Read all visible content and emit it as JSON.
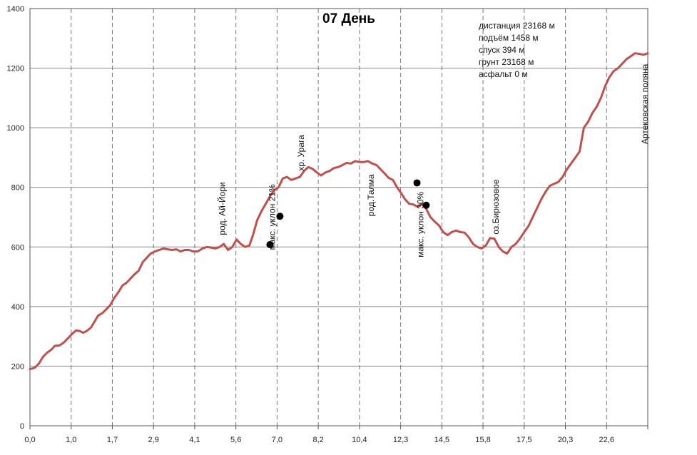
{
  "chart_data": {
    "type": "line",
    "title": "07 День",
    "xlabel": "",
    "ylabel": "",
    "ylim": [
      0,
      1400
    ],
    "yticks": [
      0,
      200,
      400,
      600,
      800,
      1000,
      1200,
      1400
    ],
    "xticks": [
      "0,0",
      "1,0",
      "1,7",
      "2,9",
      "4,1",
      "5,6",
      "7,0",
      "8,2",
      "10,4",
      "12,3",
      "14,5",
      "15,8",
      "17,5",
      "20,3",
      "22,6"
    ],
    "grid": "vertical dashed + horizontal solid",
    "line_color": "#c0504d",
    "series": [
      {
        "name": "",
        "points": [
          [
            0.0,
            190
          ],
          [
            0.7,
            195
          ],
          [
            1.3,
            210
          ],
          [
            1.8,
            230
          ],
          [
            2.4,
            245
          ],
          [
            3.0,
            255
          ],
          [
            3.5,
            268
          ],
          [
            4.2,
            270
          ],
          [
            4.8,
            280
          ],
          [
            5.4,
            295
          ],
          [
            6.0,
            310
          ],
          [
            6.5,
            320
          ],
          [
            7.0,
            318
          ],
          [
            7.5,
            312
          ],
          [
            8.0,
            318
          ],
          [
            8.6,
            330
          ],
          [
            9.1,
            350
          ],
          [
            9.6,
            370
          ],
          [
            10.2,
            378
          ],
          [
            10.8,
            392
          ],
          [
            11.3,
            405
          ],
          [
            11.9,
            430
          ],
          [
            12.5,
            450
          ],
          [
            13.0,
            470
          ],
          [
            13.6,
            480
          ],
          [
            14.2,
            495
          ],
          [
            14.8,
            510
          ],
          [
            15.3,
            520
          ],
          [
            15.9,
            550
          ],
          [
            16.5,
            565
          ],
          [
            17.0,
            578
          ],
          [
            17.6,
            585
          ],
          [
            18.2,
            590
          ],
          [
            18.8,
            595
          ],
          [
            19.4,
            592
          ],
          [
            20.0,
            590
          ],
          [
            20.6,
            592
          ],
          [
            21.2,
            585
          ],
          [
            21.8,
            590
          ],
          [
            22.4,
            590
          ],
          [
            23.0,
            585
          ],
          [
            23.6,
            585
          ],
          [
            24.3,
            595
          ],
          [
            24.9,
            600
          ],
          [
            25.5,
            598
          ],
          [
            26.1,
            595
          ],
          [
            26.7,
            600
          ],
          [
            27.3,
            610
          ],
          [
            27.9,
            590
          ],
          [
            28.5,
            600
          ],
          [
            29.1,
            625
          ],
          [
            29.7,
            610
          ],
          [
            30.3,
            600
          ],
          [
            30.9,
            605
          ],
          [
            31.4,
            640
          ],
          [
            32.0,
            690
          ],
          [
            32.6,
            720
          ],
          [
            33.2,
            745
          ],
          [
            33.8,
            770
          ],
          [
            34.4,
            790
          ],
          [
            35.0,
            800
          ],
          [
            35.6,
            830
          ],
          [
            36.2,
            835
          ],
          [
            36.8,
            825
          ],
          [
            37.4,
            830
          ],
          [
            38.0,
            835
          ],
          [
            38.6,
            855
          ],
          [
            39.2,
            868
          ],
          [
            39.8,
            862
          ],
          [
            40.4,
            850
          ],
          [
            41.0,
            840
          ],
          [
            41.6,
            850
          ],
          [
            42.2,
            855
          ],
          [
            42.8,
            865
          ],
          [
            43.4,
            868
          ],
          [
            44.0,
            875
          ],
          [
            44.6,
            882
          ],
          [
            45.2,
            880
          ],
          [
            45.8,
            888
          ],
          [
            46.4,
            885
          ],
          [
            47.0,
            885
          ],
          [
            47.6,
            888
          ],
          [
            48.2,
            880
          ],
          [
            48.8,
            875
          ],
          [
            49.4,
            860
          ],
          [
            50.0,
            845
          ],
          [
            50.5,
            832
          ],
          [
            51.1,
            825
          ],
          [
            51.7,
            800
          ],
          [
            52.3,
            780
          ],
          [
            52.8,
            760
          ],
          [
            53.4,
            745
          ],
          [
            54.0,
            742
          ],
          [
            54.6,
            735
          ],
          [
            55.2,
            745
          ],
          [
            55.8,
            728
          ],
          [
            56.4,
            700
          ],
          [
            57.0,
            685
          ],
          [
            57.6,
            672
          ],
          [
            58.2,
            650
          ],
          [
            58.8,
            640
          ],
          [
            59.4,
            650
          ],
          [
            60.0,
            655
          ],
          [
            60.6,
            650
          ],
          [
            61.2,
            648
          ],
          [
            61.8,
            632
          ],
          [
            62.4,
            610
          ],
          [
            63.0,
            600
          ],
          [
            63.6,
            595
          ],
          [
            64.2,
            605
          ],
          [
            64.8,
            630
          ],
          [
            65.4,
            628
          ],
          [
            66.0,
            600
          ],
          [
            66.6,
            585
          ],
          [
            67.2,
            578
          ],
          [
            67.8,
            600
          ],
          [
            68.4,
            610
          ],
          [
            69.0,
            628
          ],
          [
            69.6,
            650
          ],
          [
            70.2,
            670
          ],
          [
            70.8,
            700
          ],
          [
            71.4,
            730
          ],
          [
            72.0,
            760
          ],
          [
            72.6,
            785
          ],
          [
            73.2,
            805
          ],
          [
            73.8,
            812
          ],
          [
            74.4,
            818
          ],
          [
            75.0,
            835
          ],
          [
            75.6,
            860
          ],
          [
            76.2,
            880
          ],
          [
            76.8,
            900
          ],
          [
            77.4,
            920
          ],
          [
            78.0,
            1000
          ],
          [
            78.6,
            1020
          ],
          [
            79.2,
            1050
          ],
          [
            79.8,
            1070
          ],
          [
            80.4,
            1100
          ],
          [
            81.0,
            1140
          ],
          [
            81.6,
            1170
          ],
          [
            82.2,
            1190
          ],
          [
            82.8,
            1200
          ],
          [
            83.4,
            1215
          ],
          [
            84.0,
            1230
          ],
          [
            84.6,
            1240
          ],
          [
            85.2,
            1250
          ],
          [
            85.8,
            1248
          ],
          [
            86.4,
            1245
          ],
          [
            87.0,
            1250
          ]
        ]
      }
    ],
    "markers": [
      {
        "x": 33.8,
        "y": 608
      },
      {
        "x": 35.2,
        "y": 703
      },
      {
        "x": 54.5,
        "y": 815
      },
      {
        "x": 55.8,
        "y": 740
      }
    ],
    "annotations": [
      {
        "text": "род. Ай-Йори",
        "x": 27.5,
        "y": 640
      },
      {
        "text": "макс. уклон 21%",
        "x": 34.5,
        "y": 590
      },
      {
        "text": "хр. Урага",
        "x": 38.6,
        "y": 855
      },
      {
        "text": "род.Талма",
        "x": 48.4,
        "y": 703
      },
      {
        "text": "макс. уклон 30%",
        "x": 55.4,
        "y": 565
      },
      {
        "text": "оз.Бирюзовое",
        "x": 66.0,
        "y": 642
      },
      {
        "text": "Артековская поляна",
        "x": 87.0,
        "y": 945
      }
    ]
  },
  "stats": [
    "дистанция 23168 м",
    "подъём 1458 м",
    "спуск 394 м",
    "грунт 23168 м",
    "асфальт 0 м"
  ]
}
